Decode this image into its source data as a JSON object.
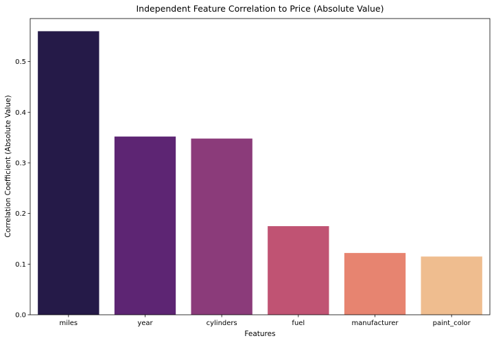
{
  "chart_data": {
    "type": "bar",
    "title": "Independent Feature Correlation to Price (Absolute Value)",
    "xlabel": "Features",
    "ylabel": "Correlation Coefficient (Absolute Value)",
    "categories": [
      "miles",
      "year",
      "cylinders",
      "fuel",
      "manufacturer",
      "paint_color"
    ],
    "values": [
      0.56,
      0.352,
      0.348,
      0.175,
      0.122,
      0.115
    ],
    "colors": [
      "#251a48",
      "#5d2573",
      "#8b3b7a",
      "#c05373",
      "#e78470",
      "#efbd8f"
    ],
    "ylim": [
      0,
      0.585
    ],
    "yticks": [
      0.0,
      0.1,
      0.2,
      0.3,
      0.4,
      0.5
    ],
    "ytick_labels": [
      "0.0",
      "0.1",
      "0.2",
      "0.3",
      "0.4",
      "0.5"
    ],
    "grid": false,
    "legend": "none"
  }
}
